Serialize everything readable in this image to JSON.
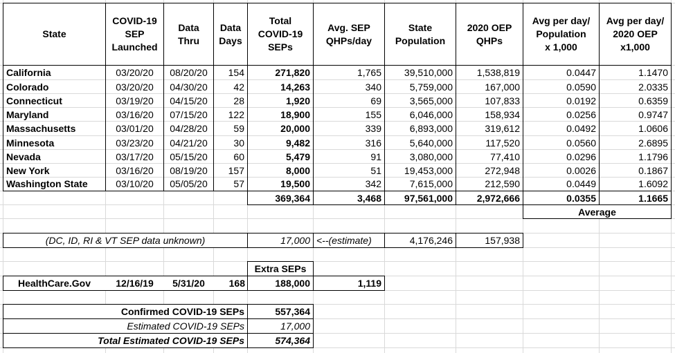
{
  "table": {
    "header": [
      "State",
      "COVID-19\nSEP\nLaunched",
      "Data\nThru",
      "Data\nDays",
      "Total\nCOVID-19\nSEPs",
      "Avg. SEP\nQHPs/day",
      "State\nPopulation",
      "2020 OEP\nQHPs",
      "Avg per day/\nPopulation\nx 1,000",
      "Avg per day/\n2020 OEP\nx1,000"
    ],
    "rows": [
      [
        "California",
        "03/20/20",
        "08/20/20",
        "154",
        "271,820",
        "1,765",
        "39,510,000",
        "1,538,819",
        "0.0447",
        "1.1470"
      ],
      [
        "Colorado",
        "03/20/20",
        "04/30/20",
        "42",
        "14,263",
        "340",
        "5,759,000",
        "167,000",
        "0.0590",
        "2.0335"
      ],
      [
        "Connecticut",
        "03/19/20",
        "04/15/20",
        "28",
        "1,920",
        "69",
        "3,565,000",
        "107,833",
        "0.0192",
        "0.6359"
      ],
      [
        "Maryland",
        "03/16/20",
        "07/15/20",
        "122",
        "18,900",
        "155",
        "6,046,000",
        "158,934",
        "0.0256",
        "0.9747"
      ],
      [
        "Massachusetts",
        "03/01/20",
        "04/28/20",
        "59",
        "20,000",
        "339",
        "6,893,000",
        "319,612",
        "0.0492",
        "1.0606"
      ],
      [
        "Minnesota",
        "03/23/20",
        "04/21/20",
        "30",
        "9,482",
        "316",
        "5,640,000",
        "117,520",
        "0.0560",
        "2.6895"
      ],
      [
        "Nevada",
        "03/17/20",
        "05/15/20",
        "60",
        "5,479",
        "91",
        "3,080,000",
        "77,410",
        "0.0296",
        "1.1796"
      ],
      [
        "New York",
        "03/16/20",
        "08/19/20",
        "157",
        "8,000",
        "51",
        "19,453,000",
        "272,948",
        "0.0026",
        "0.1867"
      ],
      [
        "Washington State",
        "03/10/20",
        "05/05/20",
        "57",
        "19,500",
        "342",
        "7,615,000",
        "212,590",
        "0.0449",
        "1.6092"
      ]
    ],
    "totals": [
      "369,364",
      "3,468",
      "97,561,000",
      "2,972,666",
      "0.0355",
      "1.1665"
    ],
    "average_label": "Average"
  },
  "estimate": {
    "note": "(DC, ID, RI & VT SEP data unknown)",
    "value": "17,000",
    "arrow": "<--(estimate)",
    "population": "4,176,246",
    "oep": "157,938"
  },
  "healthcare_gov": {
    "header": "Extra SEPs",
    "cells": [
      "HealthCare.Gov",
      "12/16/19",
      "5/31/20",
      "168",
      "188,000",
      "1,119"
    ]
  },
  "summary": [
    {
      "label": "Confirmed COVID-19 SEPs",
      "value": "557,364"
    },
    {
      "label": "Estimated COVID-19 SEPs",
      "value": "17,000"
    },
    {
      "label": "Total Estimated COVID-19 SEPs",
      "value": "574,364"
    }
  ]
}
